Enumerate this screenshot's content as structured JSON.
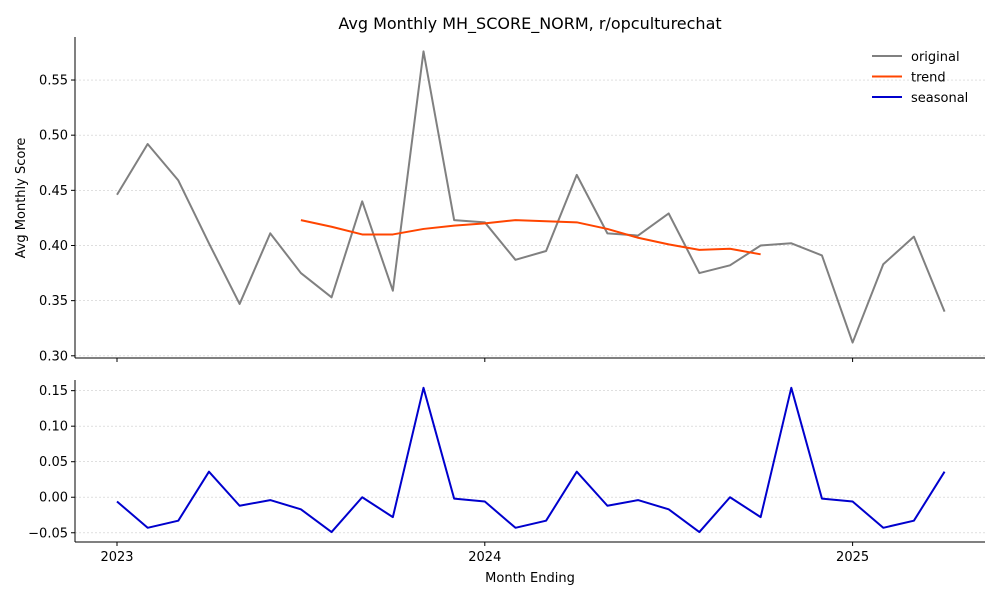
{
  "chart_data": {
    "type": "line",
    "title": "Avg Monthly MH_SCORE_NORM, r/opculturechat",
    "xlabel": "Month Ending",
    "x_ticks": [
      "2023",
      "2024",
      "2025"
    ],
    "grid": "horizontal dashed",
    "legend_position": "top-right",
    "colors": {
      "original": "#808080",
      "trend": "#ff4500",
      "seasonal": "#0000cd"
    },
    "months": [
      "2023-01",
      "2023-02",
      "2023-03",
      "2023-04",
      "2023-05",
      "2023-06",
      "2023-07",
      "2023-08",
      "2023-09",
      "2023-10",
      "2023-11",
      "2023-12",
      "2024-01",
      "2024-02",
      "2024-03",
      "2024-04",
      "2024-05",
      "2024-06",
      "2024-07",
      "2024-08",
      "2024-09",
      "2024-10",
      "2024-11",
      "2024-12",
      "2025-01",
      "2025-02",
      "2025-03",
      "2025-04"
    ],
    "panels": [
      {
        "ylabel": "Avg Monthly Score",
        "ylim": [
          0.298,
          0.589
        ],
        "y_ticks": [
          "0.30",
          "0.35",
          "0.40",
          "0.45",
          "0.50",
          "0.55"
        ],
        "series": [
          {
            "name": "original",
            "values": [
              0.446,
              0.492,
              0.459,
              0.402,
              0.347,
              0.411,
              0.375,
              0.353,
              0.44,
              0.359,
              0.576,
              0.423,
              0.421,
              0.387,
              0.395,
              0.464,
              0.411,
              0.409,
              0.429,
              0.375,
              0.382,
              0.4,
              0.402,
              0.391,
              0.312,
              0.383,
              0.408,
              0.34
            ]
          },
          {
            "name": "trend",
            "values": [
              null,
              null,
              null,
              null,
              null,
              null,
              0.423,
              0.417,
              0.41,
              0.41,
              0.415,
              0.418,
              0.42,
              0.423,
              0.422,
              0.421,
              0.415,
              0.407,
              0.401,
              0.396,
              0.397,
              0.392,
              null,
              null,
              null,
              null,
              null,
              null
            ]
          }
        ]
      },
      {
        "ylabel": "",
        "ylim": [
          -0.063,
          0.165
        ],
        "y_ticks": [
          "−0.05",
          "0.00",
          "0.05",
          "0.10",
          "0.15"
        ],
        "series": [
          {
            "name": "seasonal",
            "values": [
              -0.006,
              -0.043,
              -0.033,
              0.036,
              -0.012,
              -0.004,
              -0.017,
              -0.049,
              0.0,
              -0.028,
              0.154,
              -0.002,
              -0.006,
              -0.043,
              -0.033,
              0.036,
              -0.012,
              -0.004,
              -0.017,
              -0.049,
              0.0,
              -0.028,
              0.154,
              -0.002,
              -0.006,
              -0.043,
              -0.033,
              0.036
            ]
          }
        ]
      }
    ]
  }
}
